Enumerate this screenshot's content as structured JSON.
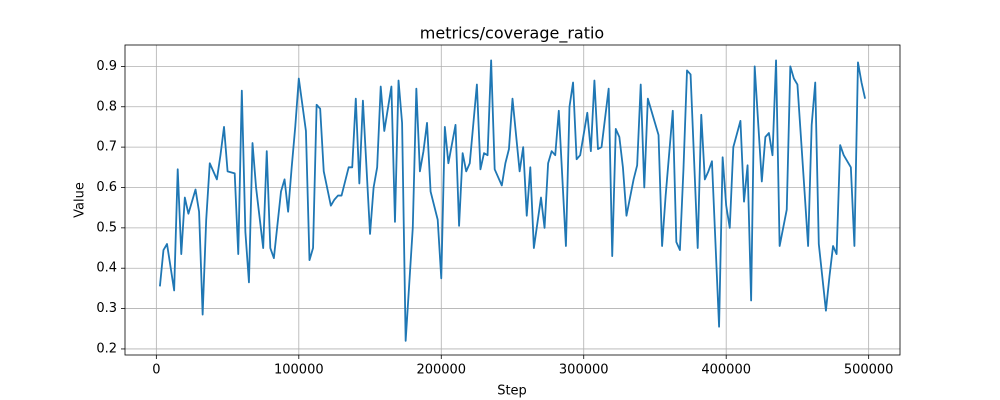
{
  "chart_data": {
    "type": "line",
    "title": "metrics/coverage_ratio",
    "xlabel": "Step",
    "ylabel": "Value",
    "x": [
      2500,
      5000,
      7500,
      12500,
      15000,
      17500,
      20000,
      22500,
      27500,
      30000,
      32500,
      35000,
      37500,
      42500,
      45000,
      47500,
      50000,
      55000,
      57500,
      60000,
      62500,
      65000,
      67500,
      70000,
      75000,
      77500,
      80000,
      82500,
      87500,
      90000,
      92500,
      95000,
      97500,
      100000,
      105000,
      107500,
      110000,
      112500,
      115000,
      117500,
      122500,
      125000,
      127500,
      130000,
      135000,
      137500,
      140000,
      142500,
      145000,
      150000,
      152500,
      155000,
      157500,
      160000,
      165000,
      167500,
      170000,
      172500,
      175000,
      180000,
      182500,
      185000,
      187500,
      190000,
      192500,
      197500,
      200000,
      202500,
      205000,
      210000,
      212500,
      215000,
      217500,
      220000,
      225000,
      227500,
      230000,
      232500,
      235000,
      237500,
      242500,
      245000,
      247500,
      250000,
      255000,
      257500,
      260000,
      262500,
      265000,
      270000,
      272500,
      275000,
      277500,
      280000,
      282500,
      287500,
      290000,
      292500,
      295000,
      297500,
      302500,
      305000,
      307500,
      310000,
      312500,
      317500,
      320000,
      322500,
      325000,
      327500,
      330000,
      335000,
      337500,
      340000,
      342500,
      345000,
      350000,
      352500,
      355000,
      357500,
      362500,
      365000,
      367500,
      370000,
      372500,
      375000,
      380000,
      382500,
      385000,
      387500,
      390000,
      395000,
      397500,
      400000,
      402500,
      405000,
      410000,
      412500,
      415000,
      417500,
      420000,
      425000,
      427500,
      430000,
      432500,
      435000,
      437500,
      442500,
      445000,
      447500,
      450000,
      455000,
      457500,
      460000,
      462500,
      465000,
      470000,
      472500,
      475000,
      477500,
      480000,
      482500,
      487500,
      490000,
      492500,
      495000,
      497500
    ],
    "series": [
      {
        "name": "coverage_ratio",
        "color": "#1f77b4",
        "values": [
          0.355,
          0.445,
          0.46,
          0.345,
          0.645,
          0.435,
          0.575,
          0.535,
          0.595,
          0.54,
          0.285,
          0.52,
          0.66,
          0.62,
          0.68,
          0.75,
          0.64,
          0.635,
          0.435,
          0.84,
          0.49,
          0.365,
          0.71,
          0.6,
          0.45,
          0.69,
          0.45,
          0.425,
          0.59,
          0.62,
          0.54,
          0.65,
          0.75,
          0.87,
          0.74,
          0.42,
          0.45,
          0.805,
          0.795,
          0.64,
          0.555,
          0.57,
          0.58,
          0.58,
          0.65,
          0.65,
          0.82,
          0.61,
          0.815,
          0.485,
          0.6,
          0.65,
          0.85,
          0.74,
          0.85,
          0.515,
          0.865,
          0.76,
          0.22,
          0.5,
          0.845,
          0.64,
          0.69,
          0.76,
          0.59,
          0.52,
          0.375,
          0.75,
          0.66,
          0.755,
          0.505,
          0.685,
          0.64,
          0.66,
          0.855,
          0.645,
          0.685,
          0.68,
          0.915,
          0.645,
          0.605,
          0.66,
          0.695,
          0.82,
          0.64,
          0.7,
          0.53,
          0.65,
          0.45,
          0.575,
          0.5,
          0.66,
          0.69,
          0.68,
          0.79,
          0.455,
          0.8,
          0.86,
          0.67,
          0.68,
          0.785,
          0.69,
          0.865,
          0.695,
          0.7,
          0.845,
          0.43,
          0.745,
          0.725,
          0.65,
          0.53,
          0.62,
          0.655,
          0.855,
          0.6,
          0.82,
          0.76,
          0.73,
          0.455,
          0.58,
          0.79,
          0.465,
          0.445,
          0.645,
          0.89,
          0.88,
          0.45,
          0.78,
          0.62,
          0.64,
          0.665,
          0.255,
          0.675,
          0.555,
          0.5,
          0.7,
          0.765,
          0.565,
          0.655,
          0.32,
          0.9,
          0.615,
          0.725,
          0.735,
          0.68,
          0.915,
          0.455,
          0.545,
          0.9,
          0.87,
          0.855,
          0.59,
          0.455,
          0.755,
          0.86,
          0.46,
          0.295,
          0.38,
          0.455,
          0.435,
          0.705,
          0.68,
          0.65,
          0.455,
          0.91,
          0.86,
          0.82
        ]
      }
    ],
    "xlim": [
      -22000,
      522000
    ],
    "xticks": [
      0,
      100000,
      200000,
      300000,
      400000,
      500000
    ],
    "ylim": [
      0.185,
      0.953
    ],
    "yticks": [
      0.2,
      0.3,
      0.4,
      0.5,
      0.6,
      0.7,
      0.8,
      0.9
    ],
    "grid": true
  }
}
